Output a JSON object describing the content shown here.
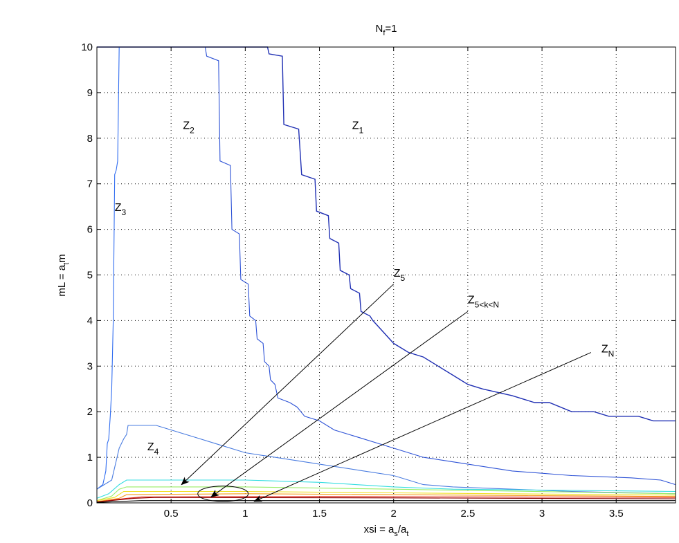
{
  "chart_data": {
    "type": "line",
    "title": {
      "main": "N",
      "sub": "f",
      "rest": "=1"
    },
    "xlabel": {
      "pre": "xsi = a",
      "s1": "s",
      "mid": "/a",
      "s2": "t"
    },
    "ylabel": {
      "pre": "mL = a",
      "s1": "t",
      "post": "m"
    },
    "xlim": [
      0,
      3.9
    ],
    "ylim": [
      0,
      10
    ],
    "xticks": [
      0.5,
      1,
      1.5,
      2,
      2.5,
      3,
      3.5
    ],
    "yticks": [
      0,
      1,
      2,
      3,
      4,
      5,
      6,
      7,
      8,
      9,
      10
    ],
    "xtick_labels": [
      "0.5",
      "1",
      "1.5",
      "2",
      "2.5",
      "3",
      "3.5"
    ],
    "ytick_labels": [
      "0",
      "1",
      "2",
      "3",
      "4",
      "5",
      "6",
      "7",
      "8",
      "9",
      "10"
    ],
    "grid": true,
    "colors": {
      "z1": "#1f2fb3",
      "z2": "#2d52d6",
      "z3": "#2f6cf0",
      "z4": "#4a7ce0",
      "cyan": "#33dde0",
      "lightgreen": "#99ee66",
      "yellow": "#f0e020",
      "orange": "#f79a1a",
      "red": "#e02010",
      "darkred": "#8a0000",
      "black": "#000000"
    },
    "series": [
      {
        "key": "z1",
        "points": [
          [
            0.0,
            10
          ],
          [
            1.15,
            10
          ],
          [
            1.16,
            9.85
          ],
          [
            1.25,
            9.8
          ],
          [
            1.26,
            8.3
          ],
          [
            1.36,
            8.2
          ],
          [
            1.38,
            7.2
          ],
          [
            1.47,
            7.1
          ],
          [
            1.48,
            6.4
          ],
          [
            1.56,
            6.3
          ],
          [
            1.57,
            5.8
          ],
          [
            1.63,
            5.7
          ],
          [
            1.64,
            5.1
          ],
          [
            1.7,
            5.0
          ],
          [
            1.71,
            4.7
          ],
          [
            1.77,
            4.6
          ],
          [
            1.78,
            4.2
          ],
          [
            1.84,
            4.1
          ],
          [
            1.86,
            4.0
          ],
          [
            2.0,
            3.5
          ],
          [
            2.1,
            3.3
          ],
          [
            2.2,
            3.2
          ],
          [
            2.3,
            3.0
          ],
          [
            2.4,
            2.8
          ],
          [
            2.5,
            2.6
          ],
          [
            2.6,
            2.5
          ],
          [
            2.8,
            2.35
          ],
          [
            2.95,
            2.2
          ],
          [
            3.05,
            2.2
          ],
          [
            3.2,
            2.0
          ],
          [
            3.35,
            2.0
          ],
          [
            3.45,
            1.9
          ],
          [
            3.65,
            1.9
          ],
          [
            3.75,
            1.8
          ],
          [
            3.9,
            1.8
          ]
        ]
      },
      {
        "key": "z2",
        "points": [
          [
            0.73,
            10
          ],
          [
            0.74,
            9.8
          ],
          [
            0.82,
            9.7
          ],
          [
            0.83,
            7.5
          ],
          [
            0.9,
            7.4
          ],
          [
            0.91,
            6.0
          ],
          [
            0.96,
            5.9
          ],
          [
            0.97,
            4.9
          ],
          [
            1.02,
            4.8
          ],
          [
            1.03,
            4.1
          ],
          [
            1.07,
            4.0
          ],
          [
            1.08,
            3.6
          ],
          [
            1.12,
            3.5
          ],
          [
            1.13,
            3.1
          ],
          [
            1.16,
            3.0
          ],
          [
            1.17,
            2.7
          ],
          [
            1.2,
            2.6
          ],
          [
            1.22,
            2.3
          ],
          [
            1.3,
            2.2
          ],
          [
            1.35,
            2.1
          ],
          [
            1.4,
            1.9
          ],
          [
            1.5,
            1.8
          ],
          [
            1.6,
            1.6
          ],
          [
            1.8,
            1.4
          ],
          [
            2.0,
            1.2
          ],
          [
            2.2,
            1.0
          ],
          [
            2.4,
            0.9
          ],
          [
            2.6,
            0.8
          ],
          [
            2.8,
            0.7
          ],
          [
            3.2,
            0.6
          ],
          [
            3.6,
            0.55
          ],
          [
            3.8,
            0.5
          ],
          [
            3.9,
            0.4
          ]
        ]
      },
      {
        "key": "z3",
        "points": [
          [
            0.15,
            10
          ],
          [
            0.14,
            7.5
          ],
          [
            0.13,
            7.3
          ],
          [
            0.12,
            7.2
          ],
          [
            0.11,
            4.0
          ],
          [
            0.1,
            2.5
          ],
          [
            0.09,
            1.9
          ],
          [
            0.08,
            1.4
          ],
          [
            0.07,
            1.3
          ],
          [
            0.06,
            0.7
          ],
          [
            0.04,
            0.4
          ],
          [
            0.0,
            0.3
          ]
        ]
      },
      {
        "key": "z4",
        "points": [
          [
            0.0,
            0.3
          ],
          [
            0.1,
            0.5
          ],
          [
            0.15,
            1.2
          ],
          [
            0.18,
            1.4
          ],
          [
            0.2,
            1.5
          ],
          [
            0.21,
            1.7
          ],
          [
            0.4,
            1.7
          ],
          [
            0.6,
            1.5
          ],
          [
            0.8,
            1.3
          ],
          [
            1.0,
            1.1
          ],
          [
            1.2,
            1.0
          ],
          [
            1.4,
            0.9
          ],
          [
            1.6,
            0.8
          ],
          [
            1.8,
            0.7
          ],
          [
            2.0,
            0.6
          ],
          [
            2.2,
            0.4
          ],
          [
            2.4,
            0.35
          ],
          [
            2.8,
            0.3
          ],
          [
            3.2,
            0.25
          ],
          [
            3.9,
            0.2
          ]
        ]
      },
      {
        "key": "cyan",
        "points": [
          [
            0.0,
            0.1
          ],
          [
            0.08,
            0.2
          ],
          [
            0.15,
            0.4
          ],
          [
            0.2,
            0.5
          ],
          [
            1.0,
            0.5
          ],
          [
            1.5,
            0.45
          ],
          [
            2.0,
            0.35
          ],
          [
            2.4,
            0.3
          ],
          [
            3.9,
            0.25
          ]
        ]
      },
      {
        "key": "lightgreen",
        "points": [
          [
            0.0,
            0.05
          ],
          [
            0.1,
            0.15
          ],
          [
            0.15,
            0.3
          ],
          [
            0.2,
            0.35
          ],
          [
            1.0,
            0.35
          ],
          [
            2.0,
            0.3
          ],
          [
            3.9,
            0.2
          ]
        ]
      },
      {
        "key": "yellow",
        "points": [
          [
            0.0,
            0.05
          ],
          [
            0.12,
            0.12
          ],
          [
            0.18,
            0.25
          ],
          [
            1.0,
            0.25
          ],
          [
            2.0,
            0.22
          ],
          [
            3.9,
            0.17
          ]
        ]
      },
      {
        "key": "orange",
        "points": [
          [
            0.0,
            0.03
          ],
          [
            0.15,
            0.1
          ],
          [
            0.2,
            0.18
          ],
          [
            1.0,
            0.2
          ],
          [
            2.0,
            0.18
          ],
          [
            3.9,
            0.14
          ]
        ]
      },
      {
        "key": "red",
        "points": [
          [
            0.0,
            0.02
          ],
          [
            0.2,
            0.1
          ],
          [
            0.3,
            0.13
          ],
          [
            1.5,
            0.14
          ],
          [
            3.9,
            0.12
          ]
        ]
      },
      {
        "key": "darkred",
        "points": [
          [
            0.0,
            0.02
          ],
          [
            0.25,
            0.1
          ],
          [
            0.4,
            0.12
          ],
          [
            2.0,
            0.11
          ],
          [
            3.9,
            0.09
          ]
        ]
      },
      {
        "key": "black",
        "points": [
          [
            0.0,
            0.01
          ],
          [
            0.3,
            0.05
          ],
          [
            0.5,
            0.05
          ],
          [
            2.0,
            0.05
          ],
          [
            3.9,
            0.05
          ]
        ]
      }
    ],
    "annotations": [
      {
        "id": "z1",
        "base": "Z",
        "sub": "1",
        "x": 1.72,
        "y": 8.2
      },
      {
        "id": "z2",
        "base": "Z",
        "sub": "2",
        "x": 0.58,
        "y": 8.2
      },
      {
        "id": "z3",
        "base": "Z",
        "sub": "3",
        "x": 0.12,
        "y": 6.4
      },
      {
        "id": "z4",
        "base": "Z",
        "sub": "4",
        "x": 0.34,
        "y": 1.15
      },
      {
        "id": "z5",
        "base": "Z",
        "sub": "5",
        "x": 2.0,
        "y": 4.96
      },
      {
        "id": "z5kn",
        "base": "Z",
        "sub": "5<k<N",
        "x": 2.5,
        "y": 4.38
      },
      {
        "id": "zn",
        "base": "Z",
        "sub": "N",
        "x": 3.4,
        "y": 3.3
      }
    ],
    "arrows": [
      {
        "id": "arrow-z5",
        "from": [
          2.0,
          4.8
        ],
        "to": [
          0.57,
          0.4
        ]
      },
      {
        "id": "arrow-z5kn",
        "from": [
          2.5,
          4.2
        ],
        "to": [
          0.77,
          0.13
        ]
      },
      {
        "id": "arrow-zn",
        "from": [
          3.33,
          3.3
        ],
        "to": [
          1.06,
          0.03
        ]
      }
    ],
    "ellipse": {
      "cx": 0.85,
      "cy": 0.2,
      "rx": 0.17,
      "ry": 0.17
    }
  }
}
